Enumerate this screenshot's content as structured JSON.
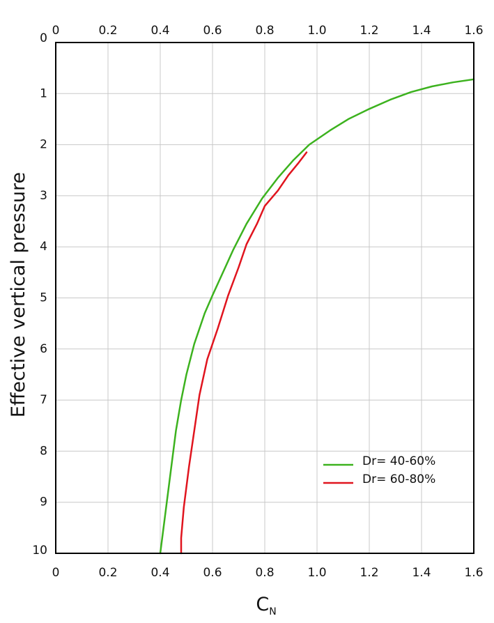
{
  "chart_data": {
    "type": "line",
    "title": "",
    "xlabel": "C",
    "xlabel_subscript": "N",
    "ylabel": "Effective vertical pressure",
    "xlim": [
      0,
      1.6
    ],
    "ylim": [
      10,
      0
    ],
    "y_axis_inverted": true,
    "x_axis_top_and_bottom": true,
    "x_ticks": [
      "0",
      "0.2",
      "0.4",
      "0.6",
      "0.8",
      "1.0",
      "1.2",
      "1.4",
      "1.6"
    ],
    "y_ticks": [
      "0",
      "1",
      "2",
      "3",
      "4",
      "5",
      "6",
      "7",
      "8",
      "9",
      "10"
    ],
    "grid": true,
    "legend_position": "lower-right",
    "series": [
      {
        "name": "Dr= 40-60%",
        "color": "#3cb21e",
        "x": [
          0.4,
          0.42,
          0.44,
          0.46,
          0.48,
          0.5,
          0.53,
          0.57,
          0.6,
          0.64,
          0.68,
          0.73,
          0.79,
          0.85,
          0.91,
          0.97,
          1.05,
          1.12,
          1.2,
          1.28,
          1.36,
          1.44,
          1.52,
          1.6
        ],
        "y": [
          10.0,
          9.2,
          8.4,
          7.6,
          7.0,
          6.5,
          5.9,
          5.3,
          4.95,
          4.5,
          4.05,
          3.55,
          3.05,
          2.65,
          2.3,
          2.0,
          1.72,
          1.5,
          1.3,
          1.12,
          0.97,
          0.86,
          0.78,
          0.72
        ]
      },
      {
        "name": "Dr= 60-80%",
        "color": "#e0141e",
        "x": [
          0.48,
          0.48,
          0.49,
          0.51,
          0.53,
          0.55,
          0.58,
          0.62,
          0.66,
          0.7,
          0.73,
          0.77,
          0.8,
          0.85,
          0.89,
          0.93,
          0.96
        ],
        "y": [
          10.0,
          9.7,
          9.1,
          8.3,
          7.6,
          6.9,
          6.2,
          5.6,
          4.95,
          4.4,
          3.95,
          3.55,
          3.2,
          2.9,
          2.6,
          2.35,
          2.15
        ]
      }
    ]
  }
}
